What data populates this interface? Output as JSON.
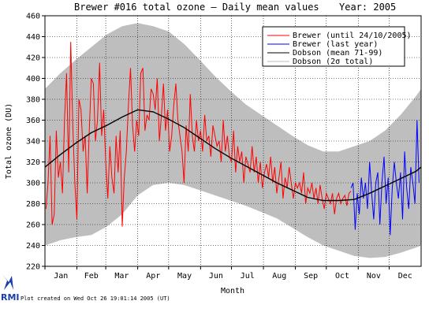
{
  "chart_data": {
    "type": "line",
    "title": "Brewer #016 total ozone – Daily mean values",
    "year_label": "Year: 2005",
    "xlabel": "Month",
    "ylabel": "Total ozone (DU)",
    "ylim": [
      220,
      460
    ],
    "y_ticks": [
      220,
      240,
      260,
      280,
      300,
      320,
      340,
      360,
      380,
      400,
      420,
      440,
      460
    ],
    "x_ticks": [
      "Jan",
      "Feb",
      "Mar",
      "Apr",
      "May",
      "Jun",
      "Jul",
      "Aug",
      "Sep",
      "Oct",
      "Nov",
      "Dec"
    ],
    "grid": true,
    "legend_position": "top-right",
    "legend": [
      {
        "label": "Brewer (until 24/10/2005)",
        "color": "#ff0000"
      },
      {
        "label": "Brewer (last year)",
        "color": "#0000ff"
      },
      {
        "label": "Dobson (mean 71-99)",
        "color": "#000000"
      },
      {
        "label": "Dobson (2σ total)",
        "color": "#bebebe"
      }
    ],
    "band": {
      "name": "Dobson (2σ total)",
      "x_day": [
        0,
        15,
        30,
        45,
        60,
        75,
        90,
        105,
        120,
        135,
        150,
        165,
        180,
        195,
        210,
        225,
        240,
        255,
        270,
        285,
        300,
        315,
        330,
        345,
        360,
        365
      ],
      "upper": [
        390,
        405,
        418,
        430,
        442,
        450,
        453,
        450,
        445,
        433,
        418,
        402,
        388,
        375,
        365,
        355,
        345,
        336,
        330,
        330,
        335,
        340,
        350,
        365,
        383,
        390
      ],
      "lower": [
        240,
        245,
        248,
        250,
        258,
        270,
        288,
        298,
        300,
        298,
        293,
        288,
        283,
        278,
        272,
        266,
        257,
        248,
        240,
        235,
        230,
        228,
        229,
        233,
        238,
        240
      ]
    },
    "mean_curve": {
      "name": "Dobson (mean 71-99)",
      "x_day": [
        0,
        15,
        30,
        45,
        60,
        75,
        90,
        105,
        120,
        135,
        150,
        165,
        180,
        195,
        210,
        225,
        240,
        255,
        270,
        285,
        300,
        315,
        330,
        345,
        360,
        365
      ],
      "values": [
        315,
        327,
        338,
        348,
        355,
        363,
        370,
        368,
        361,
        353,
        343,
        333,
        324,
        316,
        308,
        300,
        293,
        286,
        283,
        283,
        284,
        290,
        297,
        304,
        311,
        315
      ]
    },
    "series": [
      {
        "name": "Brewer (until 24/10/2005)",
        "color": "#ff0000",
        "x_day": [
          1,
          3,
          5,
          7,
          9,
          11,
          13,
          15,
          17,
          19,
          21,
          23,
          25,
          27,
          29,
          31,
          33,
          35,
          37,
          39,
          41,
          43,
          45,
          47,
          49,
          51,
          53,
          55,
          57,
          59,
          61,
          63,
          65,
          67,
          69,
          71,
          73,
          75,
          77,
          79,
          81,
          83,
          85,
          87,
          89,
          91,
          93,
          95,
          97,
          99,
          101,
          103,
          105,
          107,
          109,
          111,
          113,
          115,
          117,
          119,
          121,
          123,
          125,
          127,
          129,
          131,
          133,
          135,
          137,
          139,
          141,
          143,
          145,
          147,
          149,
          151,
          153,
          155,
          157,
          159,
          161,
          163,
          165,
          167,
          169,
          171,
          173,
          175,
          177,
          179,
          181,
          183,
          185,
          187,
          189,
          191,
          193,
          195,
          197,
          199,
          201,
          203,
          205,
          207,
          209,
          211,
          213,
          215,
          217,
          219,
          221,
          223,
          225,
          227,
          229,
          231,
          233,
          235,
          237,
          239,
          241,
          243,
          245,
          247,
          249,
          251,
          253,
          255,
          257,
          259,
          261,
          263,
          265,
          267,
          269,
          271,
          273,
          275,
          277,
          279,
          281,
          283,
          285,
          287,
          289,
          291,
          293,
          295,
          297
        ],
        "values": [
          275,
          300,
          345,
          260,
          270,
          350,
          305,
          320,
          290,
          360,
          405,
          310,
          435,
          355,
          300,
          265,
          380,
          370,
          330,
          345,
          290,
          350,
          400,
          395,
          340,
          360,
          415,
          345,
          370,
          320,
          285,
          335,
          305,
          290,
          345,
          310,
          350,
          258,
          305,
          330,
          375,
          410,
          355,
          330,
          360,
          345,
          405,
          410,
          350,
          365,
          360,
          390,
          385,
          370,
          400,
          340,
          365,
          395,
          350,
          370,
          330,
          345,
          375,
          395,
          360,
          345,
          330,
          300,
          355,
          330,
          385,
          345,
          330,
          360,
          340,
          350,
          330,
          365,
          340,
          345,
          325,
          355,
          345,
          335,
          340,
          320,
          360,
          330,
          345,
          325,
          320,
          350,
          310,
          335,
          320,
          330,
          300,
          325,
          318,
          310,
          335,
          310,
          325,
          300,
          320,
          295,
          310,
          318,
          305,
          325,
          300,
          315,
          290,
          305,
          320,
          285,
          305,
          295,
          315,
          300,
          285,
          300,
          295,
          300,
          290,
          310,
          280,
          295,
          290,
          300,
          285,
          295,
          280,
          298,
          285,
          275,
          290,
          285,
          280,
          290,
          270,
          285,
          290,
          280,
          285,
          288,
          278,
          290,
          292
        ]
      },
      {
        "name": "Brewer (last year)",
        "color": "#0000ff",
        "x_day": [
          297,
          299,
          301,
          303,
          305,
          307,
          309,
          311,
          313,
          315,
          317,
          319,
          321,
          323,
          325,
          327,
          329,
          331,
          333,
          335,
          337,
          339,
          341,
          343,
          345,
          347,
          349,
          351,
          353,
          355,
          357,
          359,
          361,
          363
        ],
        "values": [
          295,
          300,
          255,
          290,
          270,
          305,
          285,
          300,
          275,
          320,
          290,
          265,
          300,
          310,
          260,
          300,
          325,
          280,
          305,
          250,
          295,
          320,
          300,
          285,
          310,
          265,
          330,
          295,
          275,
          315,
          300,
          280,
          360,
          300
        ]
      }
    ]
  },
  "footer": {
    "logo_text": "RMI",
    "created": "Plot created on Wed Oct 26 19:01:14 2005 (UT)"
  }
}
